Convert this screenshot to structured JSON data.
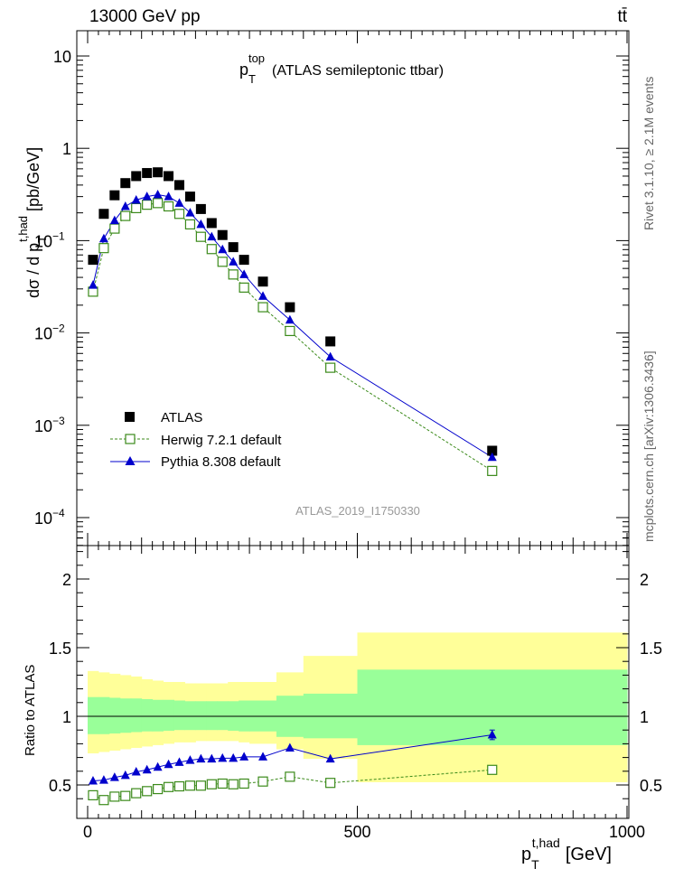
{
  "header": {
    "left": "13000 GeV pp",
    "right": "tt̄"
  },
  "side_text": {
    "rivet": "Rivet 3.1.10, ≥ 2.1M events",
    "mcplots": "mcplots.cern.ch [arXiv:1306.3436]"
  },
  "chart_data": {
    "type": "scatter",
    "title_main": "p",
    "title_sup": "top",
    "title_sub": "T",
    "title_rest": "(ATLAS semileptonic ttbar)",
    "analysis_label": "ATLAS_2019_I1750330",
    "ylabel": "dσ / d p",
    "ylabel_sup": "t,had",
    "ylabel_sub": "T",
    "ylabel_unit": "[pb/GeV]",
    "xlabel": "p",
    "xlabel_sup": "t,had",
    "xlabel_sub": "T",
    "xlabel_unit": "[GeV]",
    "ratio_ylabel": "Ratio to ATLAS",
    "xlim": [
      0,
      1000
    ],
    "ylim": [
      5e-05,
      20
    ],
    "yscale": "log",
    "ratio_ylim": [
      0.35,
      2.35
    ],
    "x_ticks": [
      "0",
      "500",
      "1000"
    ],
    "y_ticks_main": [
      "10",
      "1",
      "10⁻¹",
      "10⁻²",
      "10⁻³",
      "10⁻⁴"
    ],
    "y_ticks_ratio": [
      "2",
      "1.5",
      "1",
      "0.5"
    ],
    "legend_position": "bottom-left",
    "bins": [
      0,
      20,
      40,
      60,
      80,
      100,
      120,
      140,
      160,
      180,
      200,
      220,
      240,
      260,
      280,
      300,
      350,
      400,
      500,
      1000
    ],
    "x": [
      10,
      30,
      50,
      70,
      90,
      110,
      130,
      150,
      170,
      190,
      210,
      230,
      250,
      270,
      290,
      325,
      375,
      450,
      750
    ],
    "series": [
      {
        "name": "ATLAS",
        "color": "#000000",
        "marker": "square-filled",
        "values": [
          0.062,
          0.195,
          0.31,
          0.42,
          0.5,
          0.54,
          0.55,
          0.5,
          0.4,
          0.3,
          0.22,
          0.155,
          0.115,
          0.085,
          0.062,
          0.036,
          0.019,
          0.0081,
          0.00053
        ]
      },
      {
        "name": "Herwig 7.2.1 default",
        "color": "#3b8a1a",
        "marker": "square-open",
        "line": "dashed",
        "values": [
          0.028,
          0.083,
          0.135,
          0.185,
          0.225,
          0.245,
          0.255,
          0.235,
          0.195,
          0.15,
          0.11,
          0.081,
          0.059,
          0.043,
          0.031,
          0.019,
          0.0105,
          0.0042,
          0.00032
        ]
      },
      {
        "name": "Pythia 8.308 default",
        "color": "#0000cc",
        "marker": "triangle-filled",
        "line": "solid",
        "values": [
          0.033,
          0.105,
          0.165,
          0.235,
          0.275,
          0.3,
          0.315,
          0.3,
          0.255,
          0.2,
          0.15,
          0.11,
          0.08,
          0.059,
          0.043,
          0.025,
          0.0138,
          0.0055,
          0.00045
        ]
      }
    ],
    "ratio": {
      "herwig": [
        0.425,
        0.39,
        0.415,
        0.42,
        0.44,
        0.455,
        0.47,
        0.485,
        0.49,
        0.495,
        0.495,
        0.505,
        0.51,
        0.505,
        0.51,
        0.525,
        0.56,
        0.515,
        0.61
      ],
      "pythia": [
        0.53,
        0.535,
        0.555,
        0.57,
        0.595,
        0.61,
        0.63,
        0.65,
        0.665,
        0.68,
        0.69,
        0.69,
        0.695,
        0.695,
        0.705,
        0.705,
        0.77,
        0.69,
        0.865
      ],
      "pythia_err_last": 0.035,
      "band_inner": [
        [
          0.87,
          1.14
        ],
        [
          0.87,
          1.14
        ],
        [
          0.875,
          1.135
        ],
        [
          0.88,
          1.13
        ],
        [
          0.885,
          1.13
        ],
        [
          0.89,
          1.125
        ],
        [
          0.89,
          1.12
        ],
        [
          0.895,
          1.12
        ],
        [
          0.9,
          1.115
        ],
        [
          0.9,
          1.11
        ],
        [
          0.9,
          1.11
        ],
        [
          0.9,
          1.11
        ],
        [
          0.9,
          1.11
        ],
        [
          0.895,
          1.11
        ],
        [
          0.89,
          1.115
        ],
        [
          0.89,
          1.115
        ],
        [
          0.85,
          1.15
        ],
        [
          0.84,
          1.165
        ],
        [
          0.79,
          1.34
        ]
      ],
      "band_outer": [
        [
          0.73,
          1.33
        ],
        [
          0.74,
          1.32
        ],
        [
          0.75,
          1.31
        ],
        [
          0.76,
          1.3
        ],
        [
          0.77,
          1.29
        ],
        [
          0.78,
          1.27
        ],
        [
          0.79,
          1.26
        ],
        [
          0.8,
          1.25
        ],
        [
          0.81,
          1.25
        ],
        [
          0.81,
          1.24
        ],
        [
          0.82,
          1.24
        ],
        [
          0.82,
          1.24
        ],
        [
          0.82,
          1.24
        ],
        [
          0.82,
          1.25
        ],
        [
          0.81,
          1.25
        ],
        [
          0.8,
          1.25
        ],
        [
          0.76,
          1.32
        ],
        [
          0.69,
          1.44
        ],
        [
          0.52,
          1.61
        ]
      ]
    }
  }
}
